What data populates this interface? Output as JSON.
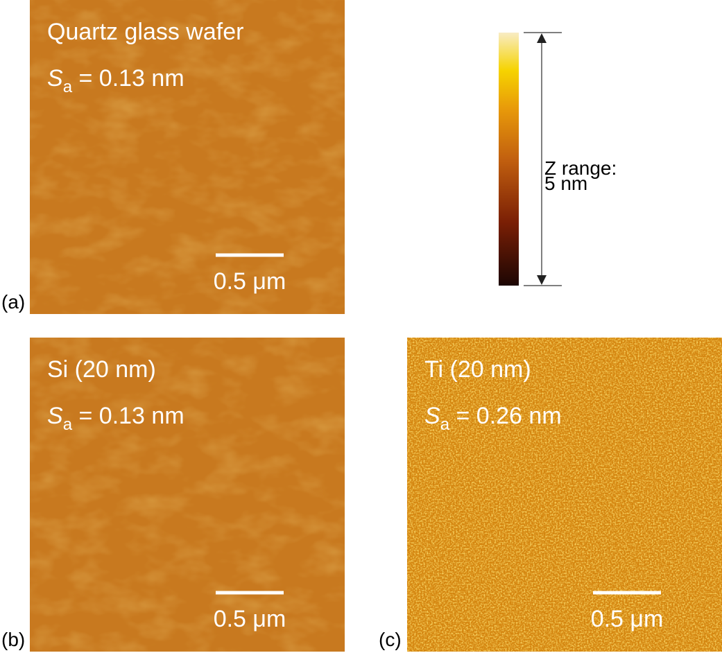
{
  "panels": [
    {
      "label": "(a)",
      "title": "Quartz glass wafer",
      "symbol": "S",
      "subscript": "a",
      "value": " = 0.13 nm",
      "scale": "0.5 μm"
    },
    {
      "label": "(b)",
      "title": "Si (20 nm)",
      "symbol": "S",
      "subscript": "a",
      "value": " = 0.13 nm",
      "scale": "0.5 μm"
    },
    {
      "label": "(c)",
      "title": "Ti (20 nm)",
      "symbol": "S",
      "subscript": "a",
      "value": " = 0.26 nm",
      "scale": "0.5 μm"
    }
  ],
  "colorbar": {
    "line1": "Z range:",
    "line2": "5 nm"
  }
}
